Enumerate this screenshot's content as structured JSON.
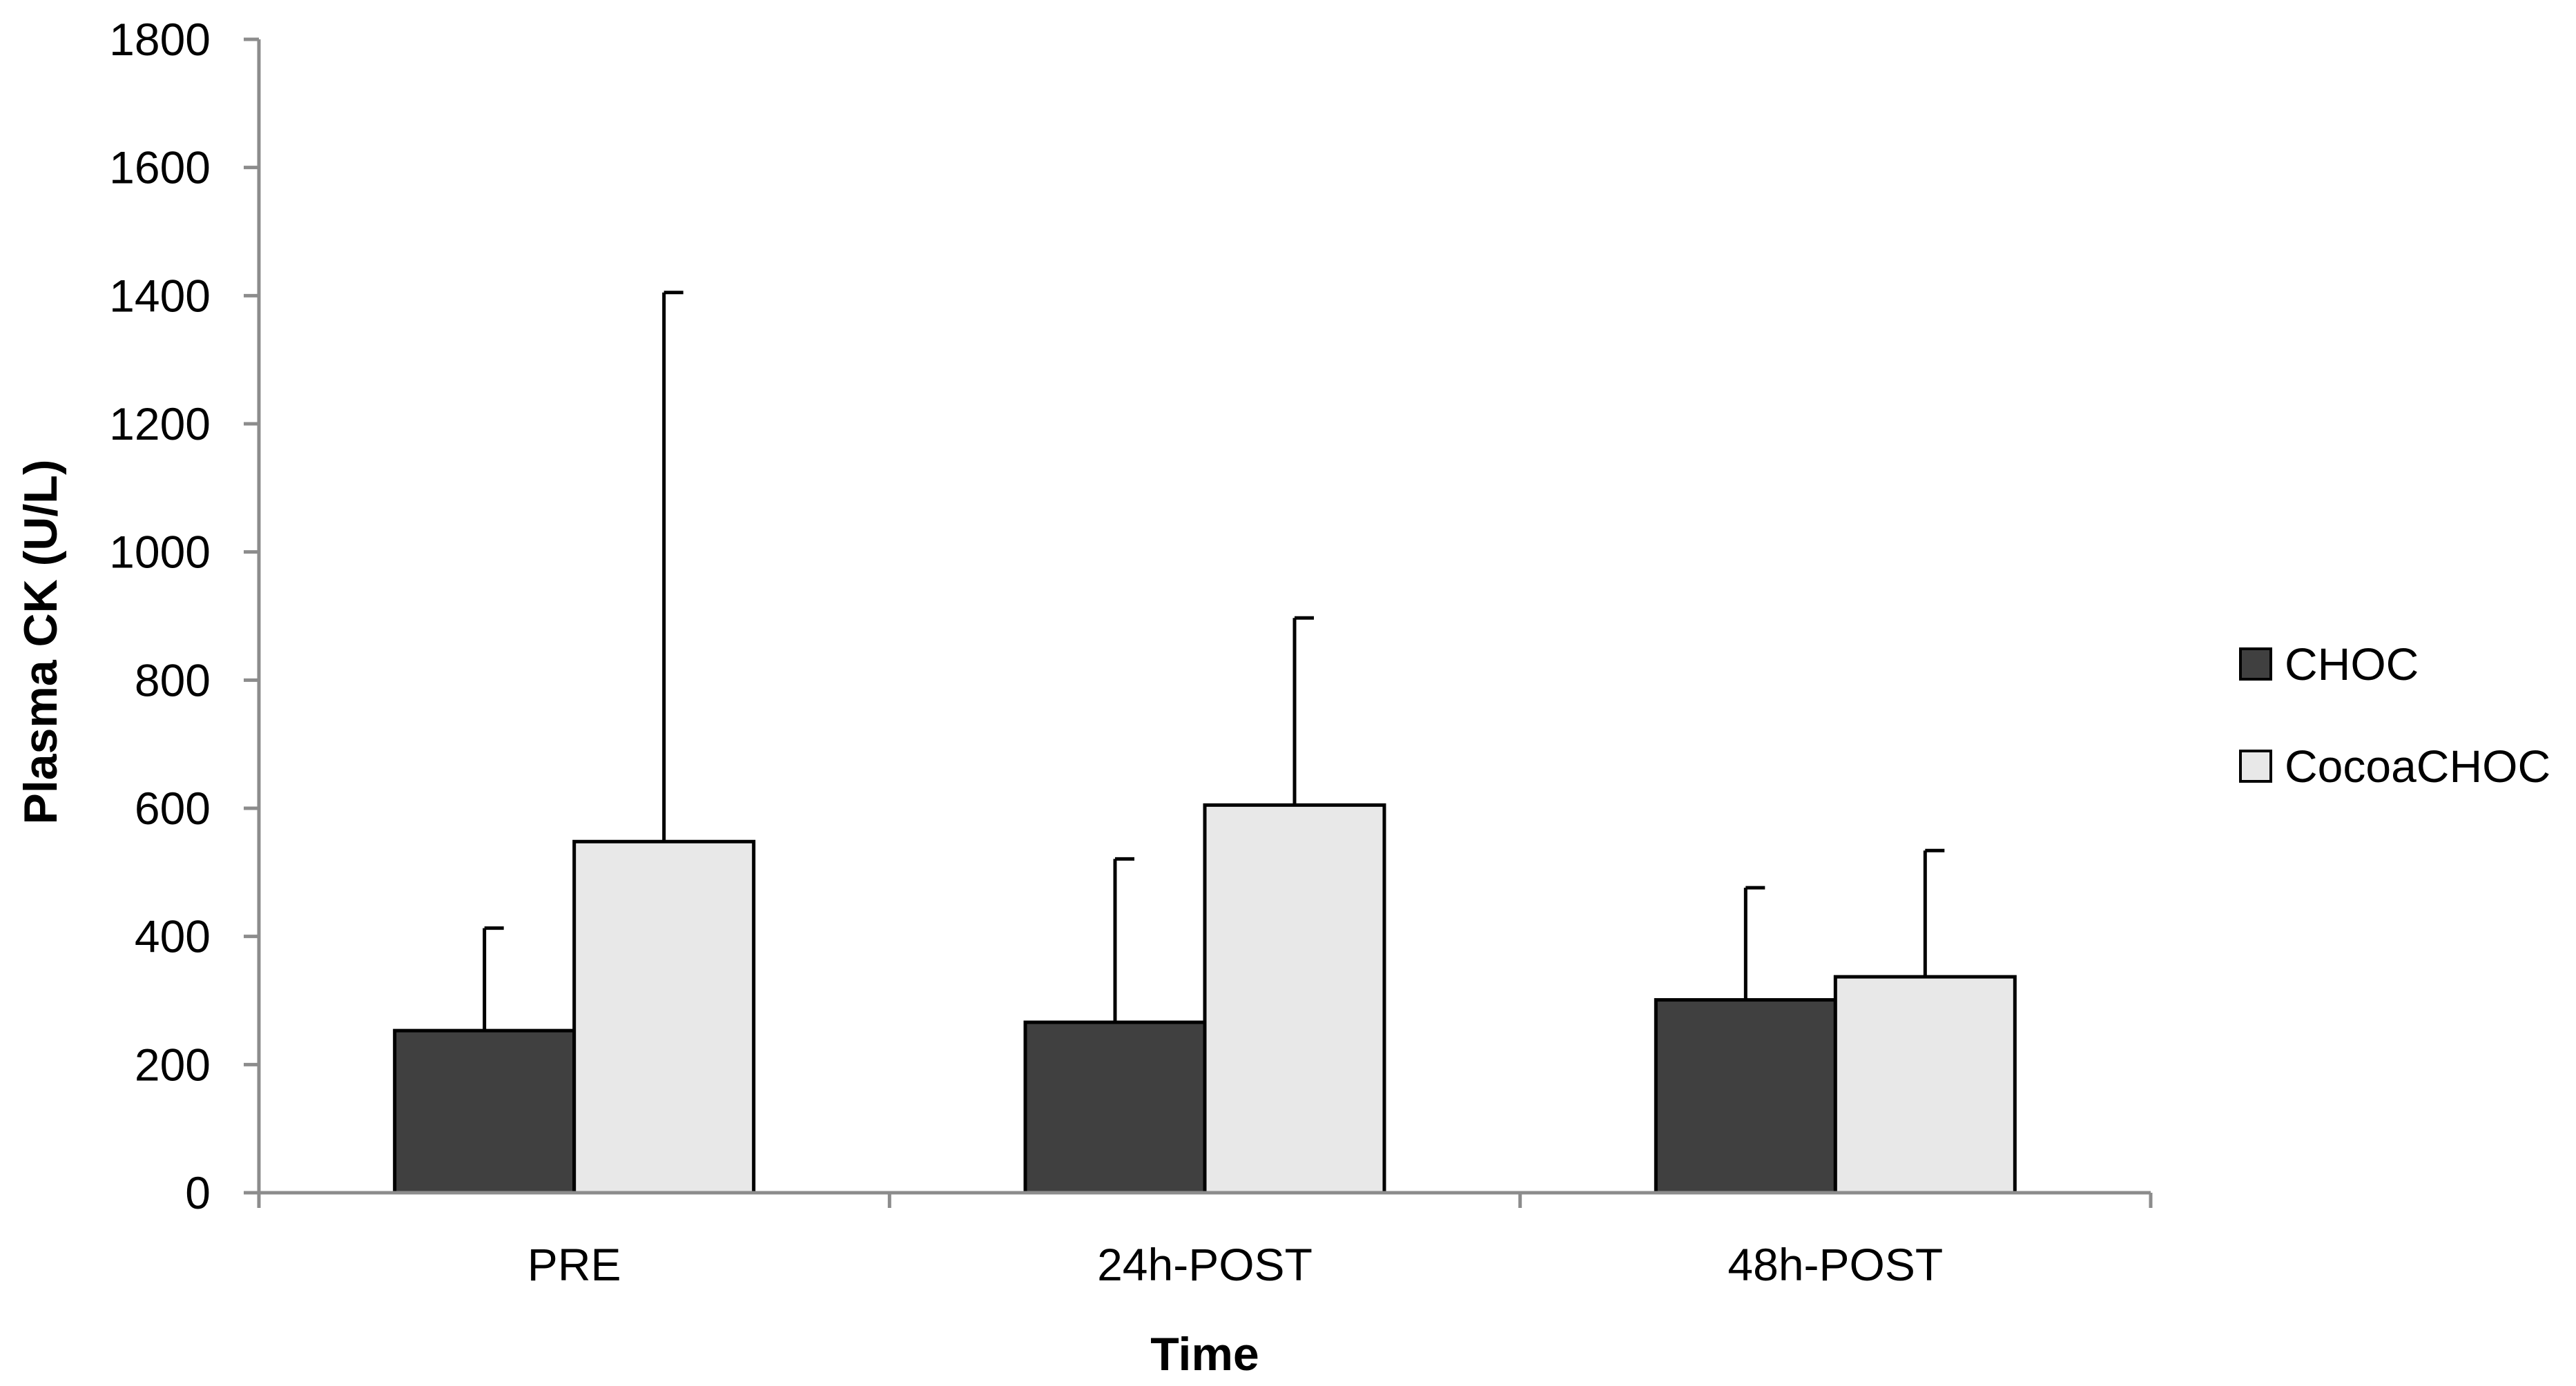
{
  "chart_data": {
    "type": "bar",
    "title": "",
    "xlabel": "Time",
    "ylabel": "Plasma CK (U/L)",
    "ylim": [
      0,
      1800
    ],
    "yticks": [
      0,
      200,
      400,
      600,
      800,
      1000,
      1200,
      1400,
      1600,
      1800
    ],
    "categories": [
      "PRE",
      "24h-POST",
      "48h-POST"
    ],
    "series": [
      {
        "name": "CHOC",
        "color": "#404040",
        "values": [
          253,
          266,
          301
        ],
        "error": [
          160,
          255,
          175
        ]
      },
      {
        "name": "CocoaCHOC",
        "color": "#e8e8e8",
        "values": [
          548,
          605,
          337
        ],
        "error": [
          857,
          292,
          197
        ]
      }
    ],
    "error_bars": "upper only",
    "grid": false,
    "legend_position": "right"
  }
}
